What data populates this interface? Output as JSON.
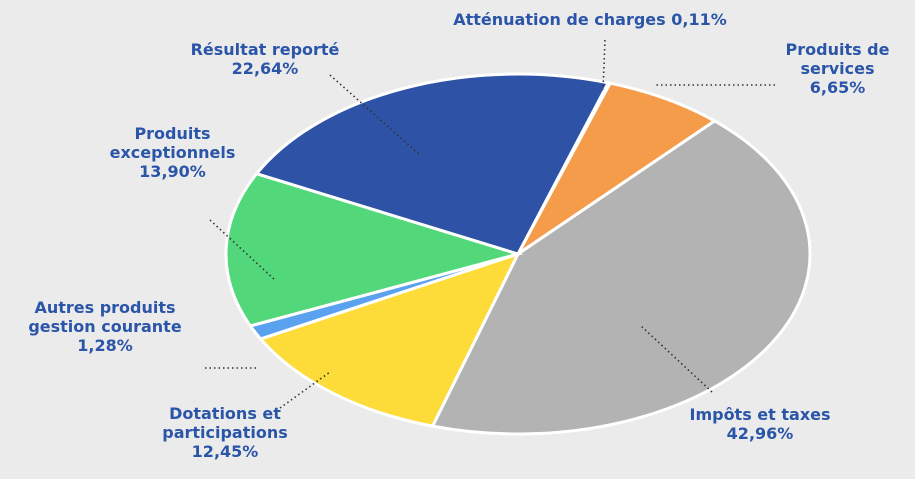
{
  "chart_data": {
    "type": "pie",
    "categories": [
      "Atténuation de charges",
      "Produits de services",
      "Impôts et taxes",
      "Dotations et participations",
      "Autres produits gestion courante",
      "Produits exceptionnels",
      "Résultat reporté"
    ],
    "values": [
      0.11,
      6.65,
      42.96,
      12.45,
      1.28,
      13.9,
      22.64
    ],
    "value_labels": [
      "0,11%",
      "6,65%",
      "42,96%",
      "12,45%",
      "1,28%",
      "13,90%",
      "22,64%"
    ],
    "colors": [
      "#f2f2f2",
      "#f59c4a",
      "#b3b3b3",
      "#fddc3a",
      "#5aa2f0",
      "#52d87a",
      "#2e52a6"
    ]
  }
}
